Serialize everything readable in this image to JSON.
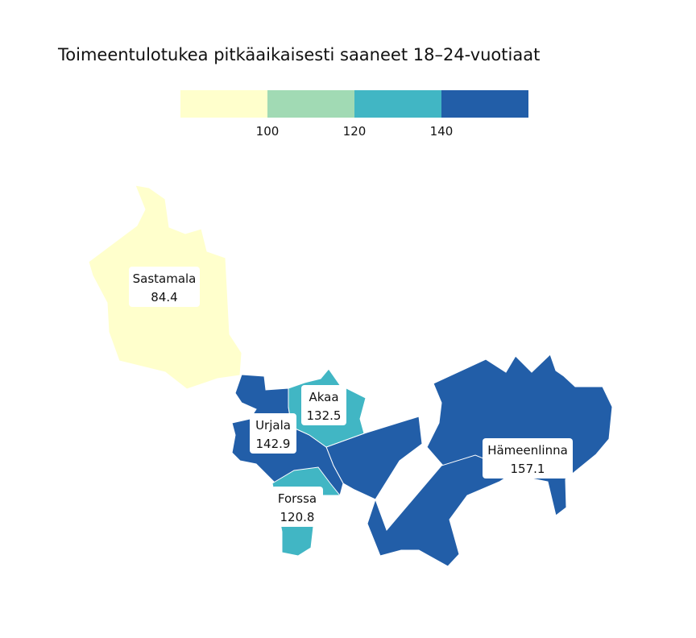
{
  "title": "Toimeentulotukea pitkäaikaisesti saaneet 18–24-vuotiaat",
  "legend": {
    "ticks": [
      "100",
      "120",
      "140"
    ],
    "colors": [
      "#ffffcc",
      "#a1dab4",
      "#41b6c4",
      "#225ea8"
    ]
  },
  "regions": [
    {
      "name": "Sastamala",
      "value": "84.4",
      "color": "#ffffcc"
    },
    {
      "name": "Akaa",
      "value": "132.5",
      "color": "#41b6c4"
    },
    {
      "name": "Urjala",
      "value": "142.9",
      "color": "#225ea8"
    },
    {
      "name": "Forssa",
      "value": "120.8",
      "color": "#41b6c4"
    },
    {
      "name": "Hämeenlinna",
      "value": "157.1",
      "color": "#225ea8"
    }
  ]
}
